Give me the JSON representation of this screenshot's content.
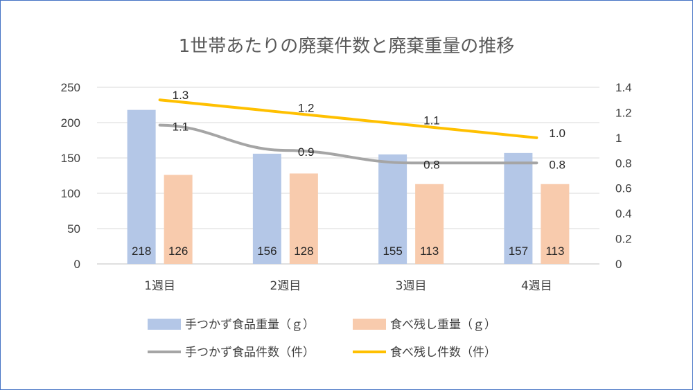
{
  "chart_data": {
    "type": "bar",
    "title": "1世帯あたりの廃棄件数と廃棄重量の推移",
    "categories": [
      "1週目",
      "2週目",
      "3週目",
      "4週目"
    ],
    "y_left": {
      "ylim": [
        0,
        250
      ],
      "ticks": [
        "0",
        "50",
        "100",
        "150",
        "200",
        "250"
      ]
    },
    "y_right": {
      "ylim": [
        0,
        1.4
      ],
      "ticks": [
        "0",
        "0.2",
        "0.4",
        "0.6",
        "0.8",
        "1",
        "1.2",
        "1.4"
      ]
    },
    "bar_series": [
      {
        "name": "手つかず食品重量（ｇ）",
        "color": "#b4c7e7",
        "values": [
          218,
          156,
          155,
          157
        ],
        "labels": [
          "218",
          "156",
          "155",
          "157"
        ]
      },
      {
        "name": "食べ残し重量（ｇ）",
        "color": "#f8cbad",
        "values": [
          126,
          128,
          113,
          113
        ],
        "labels": [
          "126",
          "128",
          "113",
          "113"
        ]
      }
    ],
    "line_series": [
      {
        "name": "手つかず食品件数（件）",
        "color": "#a5a5a5",
        "values": [
          1.1,
          0.9,
          0.8,
          0.8
        ],
        "labels": [
          "1.1",
          "0.9",
          "0.8",
          "0.8"
        ]
      },
      {
        "name": "食べ残し件数（件）",
        "color": "#ffc000",
        "values": [
          1.3,
          1.2,
          1.1,
          1.0
        ],
        "labels": [
          "1.3",
          "1.2",
          "1.1",
          "1.0"
        ]
      }
    ],
    "grid": true,
    "legend_position": "bottom"
  }
}
